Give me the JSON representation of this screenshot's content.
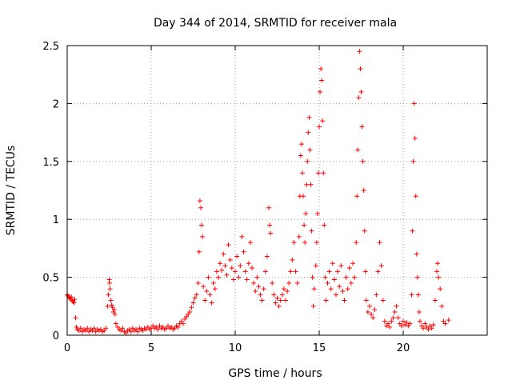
{
  "chart_data": {
    "type": "scatter",
    "title": "Day 344 of 2014, SRMTID for receiver mala",
    "xlabel": "GPS time / hours",
    "ylabel": "SRMTID / TECUs",
    "xlim": [
      0,
      25
    ],
    "ylim": [
      0,
      2.5
    ],
    "grid": true,
    "marker": "+",
    "color": "#ff0000",
    "xticks": [
      0,
      5,
      10,
      15,
      20
    ],
    "xtick_labels": [
      "0",
      "5",
      "10",
      "15",
      "20"
    ],
    "yticks": [
      0,
      0.5,
      1,
      1.5,
      2,
      2.5
    ],
    "ytick_labels": [
      "0",
      "0.5",
      "1",
      "1.5",
      "2",
      "2.5"
    ],
    "series": [
      {
        "name": "SRMTID",
        "points": [
          [
            0.0,
            0.35
          ],
          [
            0.05,
            0.34
          ],
          [
            0.1,
            0.33
          ],
          [
            0.15,
            0.32
          ],
          [
            0.2,
            0.31
          ],
          [
            0.25,
            0.33
          ],
          [
            0.3,
            0.3
          ],
          [
            0.35,
            0.29
          ],
          [
            0.4,
            0.28
          ],
          [
            0.45,
            0.31
          ],
          [
            0.5,
            0.15
          ],
          [
            0.55,
            0.07
          ],
          [
            0.6,
            0.05
          ],
          [
            0.7,
            0.04
          ],
          [
            0.8,
            0.06
          ],
          [
            0.9,
            0.03
          ],
          [
            1.0,
            0.05
          ],
          [
            1.1,
            0.04
          ],
          [
            1.2,
            0.06
          ],
          [
            1.3,
            0.03
          ],
          [
            1.4,
            0.05
          ],
          [
            1.5,
            0.04
          ],
          [
            1.6,
            0.06
          ],
          [
            1.7,
            0.03
          ],
          [
            1.8,
            0.05
          ],
          [
            1.9,
            0.04
          ],
          [
            2.0,
            0.05
          ],
          [
            2.1,
            0.03
          ],
          [
            2.2,
            0.04
          ],
          [
            2.3,
            0.06
          ],
          [
            2.4,
            0.25
          ],
          [
            2.45,
            0.35
          ],
          [
            2.5,
            0.48
          ],
          [
            2.52,
            0.45
          ],
          [
            2.55,
            0.4
          ],
          [
            2.6,
            0.3
          ],
          [
            2.65,
            0.26
          ],
          [
            2.7,
            0.24
          ],
          [
            2.75,
            0.2
          ],
          [
            2.8,
            0.22
          ],
          [
            2.85,
            0.18
          ],
          [
            2.9,
            0.1
          ],
          [
            3.0,
            0.07
          ],
          [
            3.1,
            0.05
          ],
          [
            3.2,
            0.04
          ],
          [
            3.3,
            0.06
          ],
          [
            3.4,
            0.03
          ],
          [
            3.5,
            0.02
          ],
          [
            3.6,
            0.04
          ],
          [
            3.7,
            0.05
          ],
          [
            3.8,
            0.03
          ],
          [
            3.9,
            0.06
          ],
          [
            4.0,
            0.04
          ],
          [
            4.1,
            0.05
          ],
          [
            4.2,
            0.03
          ],
          [
            4.3,
            0.06
          ],
          [
            4.4,
            0.05
          ],
          [
            4.5,
            0.04
          ],
          [
            4.6,
            0.06
          ],
          [
            4.7,
            0.05
          ],
          [
            4.8,
            0.07
          ],
          [
            4.9,
            0.05
          ],
          [
            5.0,
            0.06
          ],
          [
            5.1,
            0.08
          ],
          [
            5.2,
            0.06
          ],
          [
            5.3,
            0.07
          ],
          [
            5.4,
            0.05
          ],
          [
            5.5,
            0.08
          ],
          [
            5.6,
            0.06
          ],
          [
            5.7,
            0.07
          ],
          [
            5.8,
            0.05
          ],
          [
            5.9,
            0.06
          ],
          [
            6.0,
            0.08
          ],
          [
            6.1,
            0.06
          ],
          [
            6.2,
            0.07
          ],
          [
            6.3,
            0.05
          ],
          [
            6.4,
            0.06
          ],
          [
            6.5,
            0.08
          ],
          [
            6.6,
            0.07
          ],
          [
            6.7,
            0.1
          ],
          [
            6.8,
            0.12
          ],
          [
            6.9,
            0.1
          ],
          [
            7.0,
            0.14
          ],
          [
            7.1,
            0.16
          ],
          [
            7.2,
            0.18
          ],
          [
            7.3,
            0.2
          ],
          [
            7.4,
            0.24
          ],
          [
            7.5,
            0.28
          ],
          [
            7.6,
            0.32
          ],
          [
            7.7,
            0.35
          ],
          [
            7.8,
            0.45
          ],
          [
            7.85,
            0.72
          ],
          [
            7.9,
            1.16
          ],
          [
            7.95,
            1.1
          ],
          [
            8.0,
            0.95
          ],
          [
            8.05,
            0.85
          ],
          [
            8.1,
            0.42
          ],
          [
            8.2,
            0.3
          ],
          [
            8.3,
            0.38
          ],
          [
            8.4,
            0.5
          ],
          [
            8.5,
            0.35
          ],
          [
            8.6,
            0.28
          ],
          [
            8.7,
            0.45
          ],
          [
            8.8,
            0.4
          ],
          [
            8.9,
            0.55
          ],
          [
            9.0,
            0.5
          ],
          [
            9.1,
            0.62
          ],
          [
            9.2,
            0.56
          ],
          [
            9.3,
            0.7
          ],
          [
            9.4,
            0.6
          ],
          [
            9.5,
            0.52
          ],
          [
            9.6,
            0.78
          ],
          [
            9.7,
            0.65
          ],
          [
            9.8,
            0.58
          ],
          [
            9.9,
            0.48
          ],
          [
            10.0,
            0.55
          ],
          [
            10.1,
            0.68
          ],
          [
            10.2,
            0.5
          ],
          [
            10.3,
            0.6
          ],
          [
            10.4,
            0.85
          ],
          [
            10.5,
            0.72
          ],
          [
            10.6,
            0.55
          ],
          [
            10.7,
            0.48
          ],
          [
            10.8,
            0.62
          ],
          [
            10.9,
            0.8
          ],
          [
            11.0,
            0.58
          ],
          [
            11.1,
            0.45
          ],
          [
            11.2,
            0.38
          ],
          [
            11.3,
            0.5
          ],
          [
            11.4,
            0.42
          ],
          [
            11.5,
            0.35
          ],
          [
            11.6,
            0.3
          ],
          [
            11.7,
            0.4
          ],
          [
            11.8,
            0.55
          ],
          [
            11.9,
            0.68
          ],
          [
            12.0,
            1.1
          ],
          [
            12.05,
            0.95
          ],
          [
            12.1,
            0.88
          ],
          [
            12.2,
            0.45
          ],
          [
            12.3,
            0.35
          ],
          [
            12.4,
            0.28
          ],
          [
            12.5,
            0.32
          ],
          [
            12.6,
            0.25
          ],
          [
            12.7,
            0.3
          ],
          [
            12.8,
            0.35
          ],
          [
            12.9,
            0.4
          ],
          [
            13.0,
            0.3
          ],
          [
            13.1,
            0.38
          ],
          [
            13.2,
            0.45
          ],
          [
            13.3,
            0.55
          ],
          [
            13.4,
            0.65
          ],
          [
            13.5,
            0.8
          ],
          [
            13.6,
            0.55
          ],
          [
            13.7,
            0.45
          ],
          [
            13.8,
            0.85
          ],
          [
            13.85,
            1.2
          ],
          [
            13.9,
            1.55
          ],
          [
            13.95,
            1.65
          ],
          [
            14.0,
            1.4
          ],
          [
            14.05,
            1.2
          ],
          [
            14.1,
            0.95
          ],
          [
            14.15,
            0.8
          ],
          [
            14.2,
            1.05
          ],
          [
            14.25,
            1.3
          ],
          [
            14.3,
            1.5
          ],
          [
            14.35,
            1.75
          ],
          [
            14.4,
            1.88
          ],
          [
            14.45,
            1.6
          ],
          [
            14.5,
            1.3
          ],
          [
            14.55,
            0.9
          ],
          [
            14.6,
            0.5
          ],
          [
            14.65,
            0.25
          ],
          [
            14.7,
            0.4
          ],
          [
            14.8,
            0.6
          ],
          [
            14.85,
            0.8
          ],
          [
            14.9,
            1.05
          ],
          [
            14.95,
            1.4
          ],
          [
            15.0,
            1.8
          ],
          [
            15.05,
            2.1
          ],
          [
            15.1,
            2.3
          ],
          [
            15.15,
            2.2
          ],
          [
            15.2,
            1.85
          ],
          [
            15.25,
            1.4
          ],
          [
            15.3,
            0.95
          ],
          [
            15.35,
            0.5
          ],
          [
            15.4,
            0.3
          ],
          [
            15.5,
            0.45
          ],
          [
            15.6,
            0.55
          ],
          [
            15.7,
            0.4
          ],
          [
            15.8,
            0.62
          ],
          [
            15.9,
            0.48
          ],
          [
            16.0,
            0.35
          ],
          [
            16.1,
            0.55
          ],
          [
            16.2,
            0.42
          ],
          [
            16.3,
            0.6
          ],
          [
            16.4,
            0.38
          ],
          [
            16.5,
            0.3
          ],
          [
            16.6,
            0.5
          ],
          [
            16.7,
            0.4
          ],
          [
            16.8,
            0.58
          ],
          [
            16.9,
            0.45
          ],
          [
            17.0,
            0.62
          ],
          [
            17.1,
            0.5
          ],
          [
            17.2,
            0.8
          ],
          [
            17.25,
            1.2
          ],
          [
            17.3,
            1.6
          ],
          [
            17.35,
            2.05
          ],
          [
            17.4,
            2.45
          ],
          [
            17.45,
            2.3
          ],
          [
            17.5,
            2.1
          ],
          [
            17.55,
            1.8
          ],
          [
            17.6,
            1.5
          ],
          [
            17.65,
            1.25
          ],
          [
            17.7,
            0.9
          ],
          [
            17.75,
            0.55
          ],
          [
            17.8,
            0.3
          ],
          [
            17.9,
            0.2
          ],
          [
            18.0,
            0.25
          ],
          [
            18.1,
            0.18
          ],
          [
            18.2,
            0.15
          ],
          [
            18.3,
            0.22
          ],
          [
            18.4,
            0.35
          ],
          [
            18.5,
            0.55
          ],
          [
            18.6,
            0.8
          ],
          [
            18.7,
            0.6
          ],
          [
            18.8,
            0.3
          ],
          [
            18.9,
            0.12
          ],
          [
            19.0,
            0.08
          ],
          [
            19.1,
            0.1
          ],
          [
            19.2,
            0.07
          ],
          [
            19.3,
            0.12
          ],
          [
            19.4,
            0.15
          ],
          [
            19.5,
            0.2
          ],
          [
            19.6,
            0.25
          ],
          [
            19.7,
            0.15
          ],
          [
            19.8,
            0.1
          ],
          [
            19.9,
            0.08
          ],
          [
            20.0,
            0.12
          ],
          [
            20.1,
            0.09
          ],
          [
            20.2,
            0.11
          ],
          [
            20.3,
            0.08
          ],
          [
            20.4,
            0.1
          ],
          [
            20.5,
            0.35
          ],
          [
            20.55,
            0.9
          ],
          [
            20.6,
            1.5
          ],
          [
            20.65,
            2.0
          ],
          [
            20.7,
            1.7
          ],
          [
            20.75,
            1.2
          ],
          [
            20.8,
            0.7
          ],
          [
            20.85,
            0.5
          ],
          [
            20.9,
            0.35
          ],
          [
            20.95,
            0.2
          ],
          [
            21.0,
            0.12
          ],
          [
            21.1,
            0.08
          ],
          [
            21.2,
            0.06
          ],
          [
            21.3,
            0.1
          ],
          [
            21.4,
            0.07
          ],
          [
            21.5,
            0.05
          ],
          [
            21.6,
            0.08
          ],
          [
            21.7,
            0.06
          ],
          [
            21.8,
            0.09
          ],
          [
            21.9,
            0.3
          ],
          [
            22.0,
            0.55
          ],
          [
            22.05,
            0.62
          ],
          [
            22.1,
            0.5
          ],
          [
            22.2,
            0.4
          ],
          [
            22.3,
            0.25
          ],
          [
            22.4,
            0.12
          ],
          [
            22.5,
            0.1
          ],
          [
            22.7,
            0.13
          ]
        ]
      }
    ]
  }
}
